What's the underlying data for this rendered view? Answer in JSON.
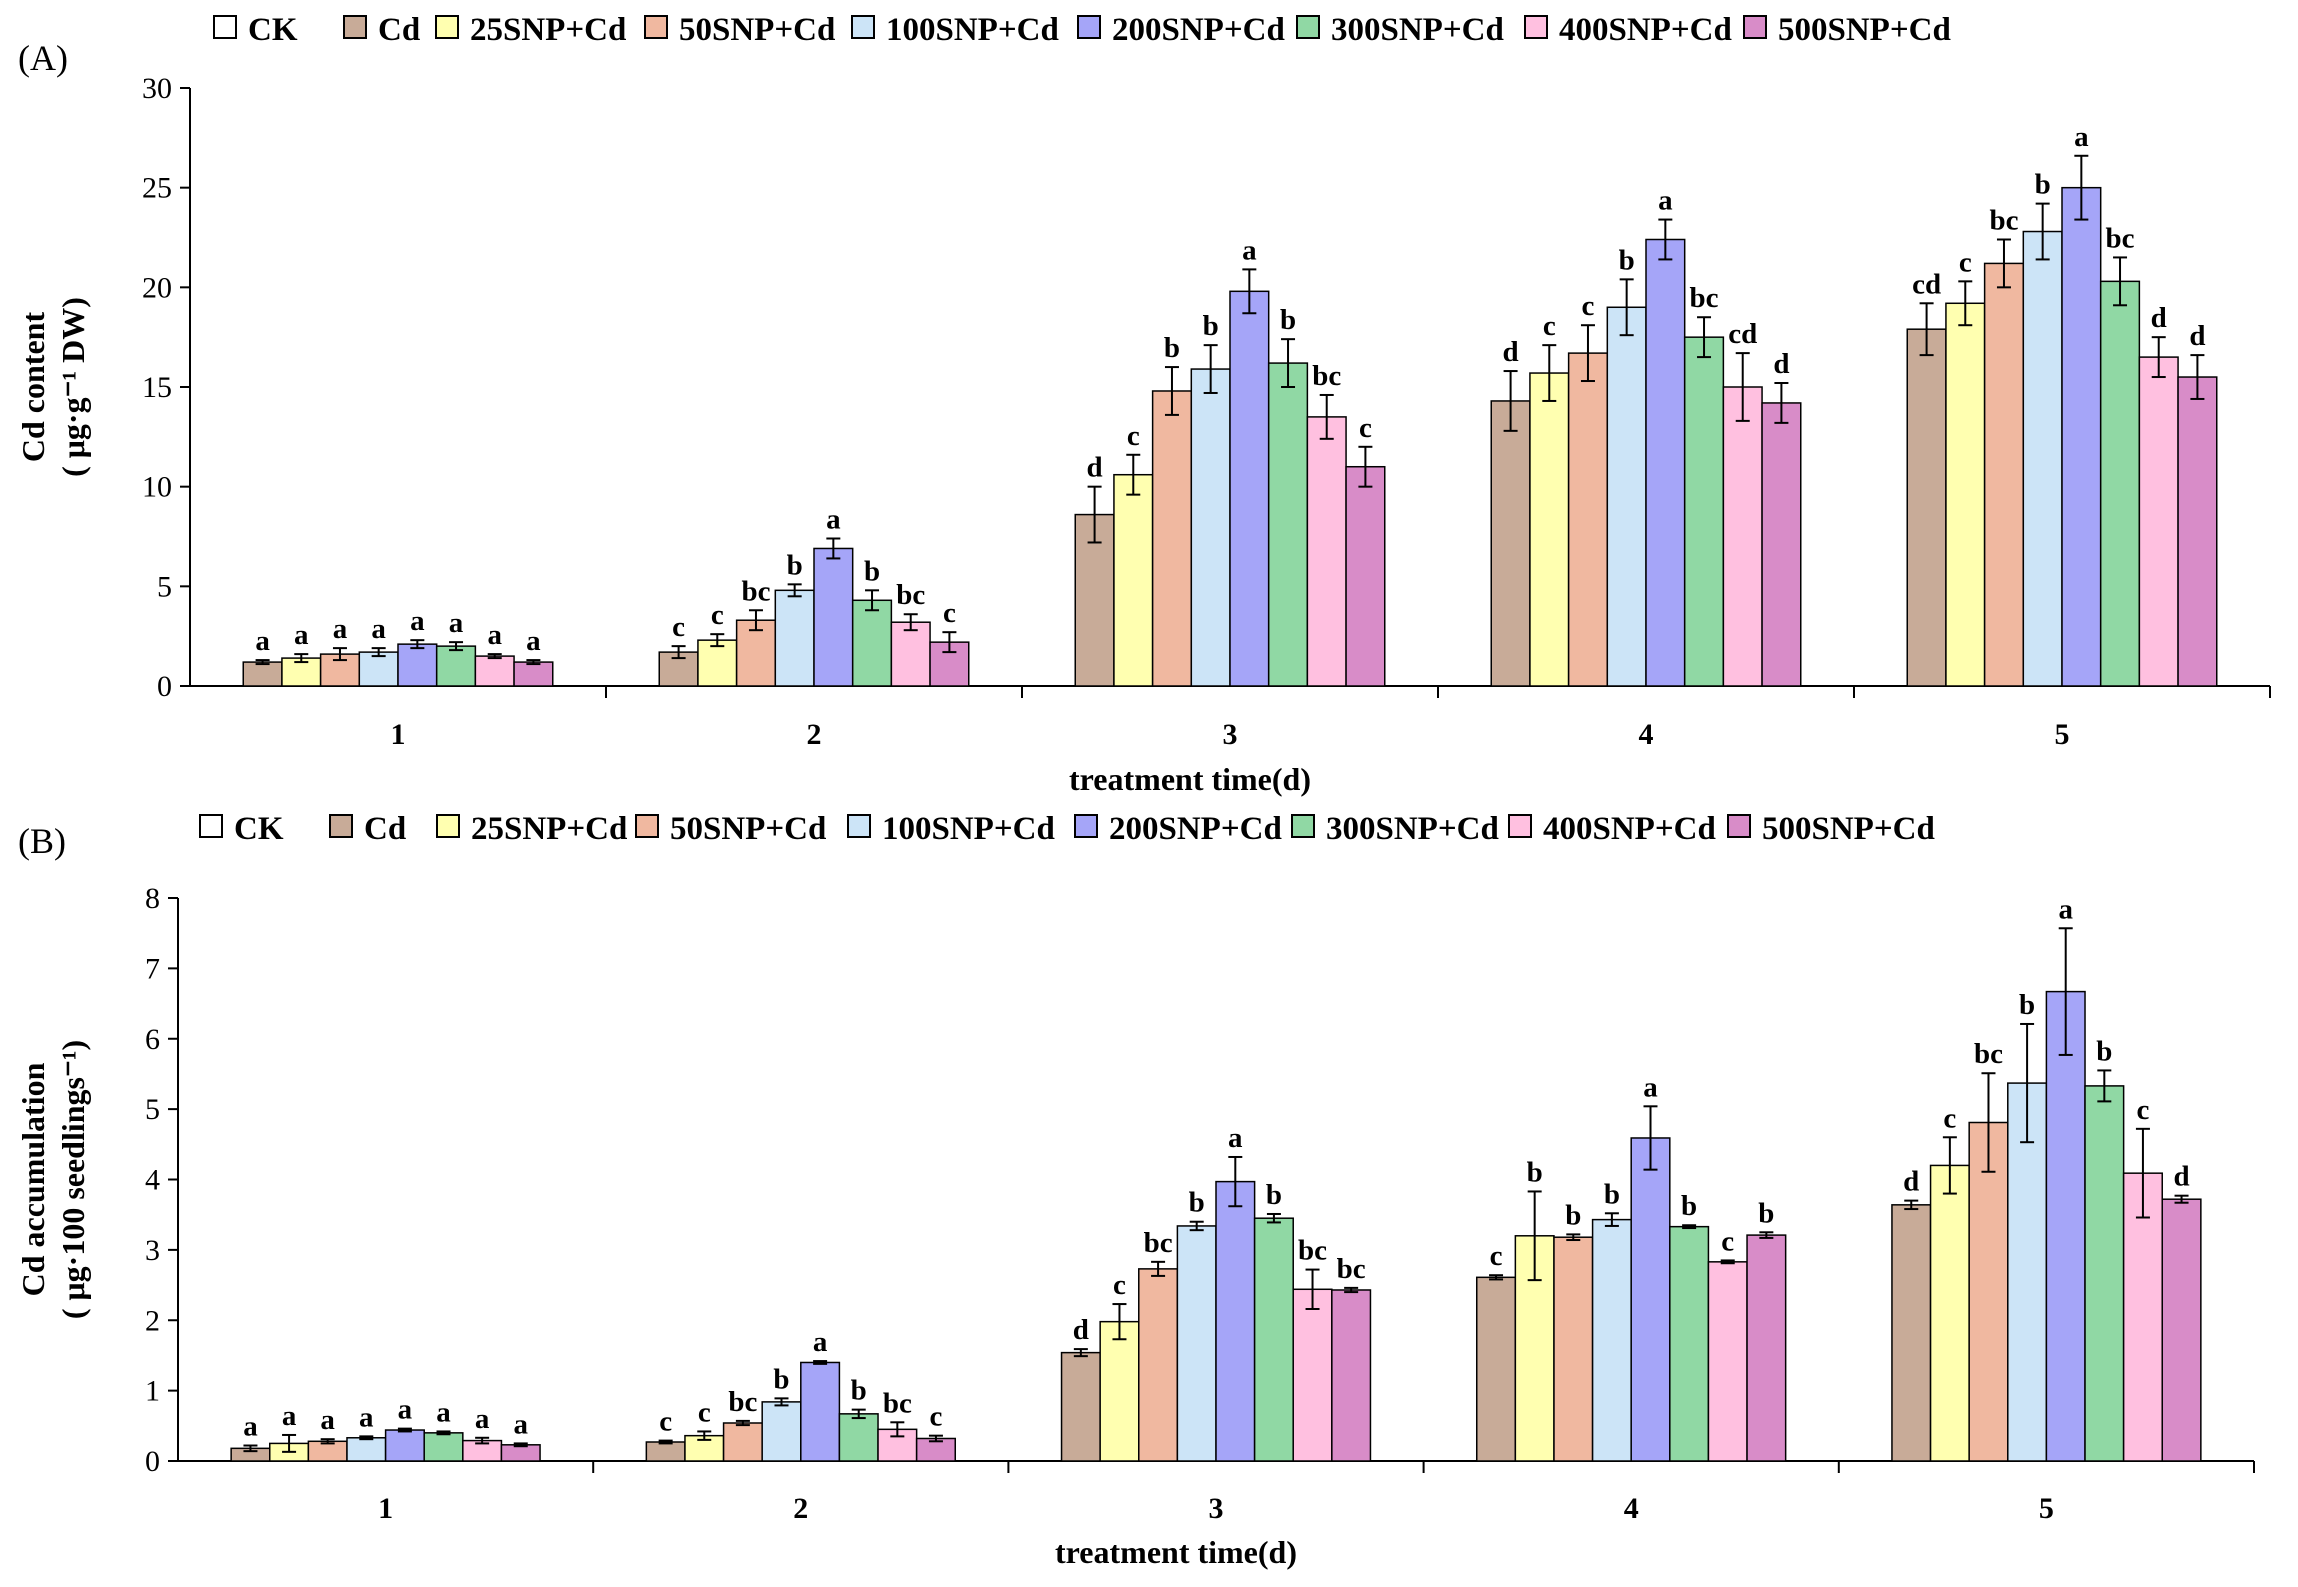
{
  "figure": {
    "legend_series": [
      "CK",
      "Cd",
      "25SNP+Cd",
      "50SNP+Cd",
      "100SNP+Cd",
      "200SNP+Cd",
      "300SNP+Cd",
      "400SNP+Cd",
      "500SNP+Cd"
    ],
    "legend_colors": [
      "#ffffff",
      "#c8ab98",
      "#ffffb0",
      "#f0b8a0",
      "#cce4f7",
      "#a5a5f8",
      "#90d8a4",
      "#ffc0e0",
      "#d88cc8"
    ]
  },
  "chart_data": [
    {
      "type": "bar",
      "panel_label": "(A)",
      "xlabel": "treatment time(d)",
      "ylabel": [
        "Cd content",
        "( μg·g⁻¹ DW)"
      ],
      "ylim": [
        0,
        30
      ],
      "yticks": [
        "0",
        "5",
        "10",
        "15",
        "20",
        "25",
        "30"
      ],
      "categories": [
        "1",
        "2",
        "3",
        "4",
        "5"
      ],
      "legend_position": "top",
      "series": [
        {
          "name": "Cd",
          "color": "#c8ab98",
          "values": [
            1.2,
            1.7,
            8.6,
            14.3,
            17.9
          ],
          "errors": [
            0.1,
            0.3,
            1.4,
            1.5,
            1.3
          ],
          "labels": [
            "a",
            "c",
            "d",
            "d",
            "cd"
          ]
        },
        {
          "name": "25SNP+Cd",
          "color": "#ffffb0",
          "values": [
            1.4,
            2.3,
            10.6,
            15.7,
            19.2
          ],
          "errors": [
            0.2,
            0.3,
            1.0,
            1.4,
            1.1
          ],
          "labels": [
            "a",
            "c",
            "c",
            "c",
            "c"
          ]
        },
        {
          "name": "50SNP+Cd",
          "color": "#f0b8a0",
          "values": [
            1.6,
            3.3,
            14.8,
            16.7,
            21.2
          ],
          "errors": [
            0.3,
            0.5,
            1.2,
            1.4,
            1.2
          ],
          "labels": [
            "a",
            "bc",
            "b",
            "c",
            "bc"
          ]
        },
        {
          "name": "100SNP+Cd",
          "color": "#cce4f7",
          "values": [
            1.7,
            4.8,
            15.9,
            19.0,
            22.8
          ],
          "errors": [
            0.2,
            0.3,
            1.2,
            1.4,
            1.4
          ],
          "labels": [
            "a",
            "b",
            "b",
            "b",
            "b"
          ]
        },
        {
          "name": "200SNP+Cd",
          "color": "#a5a5f8",
          "values": [
            2.1,
            6.9,
            19.8,
            22.4,
            25.0
          ],
          "errors": [
            0.2,
            0.5,
            1.1,
            1.0,
            1.6
          ],
          "labels": [
            "a",
            "a",
            "a",
            "a",
            "a"
          ]
        },
        {
          "name": "300SNP+Cd",
          "color": "#90d8a4",
          "values": [
            2.0,
            4.3,
            16.2,
            17.5,
            20.3
          ],
          "errors": [
            0.2,
            0.5,
            1.2,
            1.0,
            1.2
          ],
          "labels": [
            "a",
            "b",
            "b",
            "bc",
            "bc"
          ]
        },
        {
          "name": "400SNP+Cd",
          "color": "#ffc0e0",
          "values": [
            1.5,
            3.2,
            13.5,
            15.0,
            16.5
          ],
          "errors": [
            0.1,
            0.4,
            1.1,
            1.7,
            1.0
          ],
          "labels": [
            "a",
            "bc",
            "bc",
            "cd",
            "d"
          ]
        },
        {
          "name": "500SNP+Cd",
          "color": "#d88cc8",
          "values": [
            1.2,
            2.2,
            11.0,
            14.2,
            15.5
          ],
          "errors": [
            0.1,
            0.5,
            1.0,
            1.0,
            1.1
          ],
          "labels": [
            "a",
            "c",
            "c",
            "d",
            "d"
          ]
        }
      ]
    },
    {
      "type": "bar",
      "panel_label": "(B)",
      "xlabel": "treatment time(d)",
      "ylabel": [
        "Cd accumulation",
        "( μg·100 seedlings⁻¹)"
      ],
      "ylim": [
        0,
        8
      ],
      "yticks": [
        "0",
        "1",
        "2",
        "3",
        "4",
        "5",
        "6",
        "7",
        "8"
      ],
      "categories": [
        "1",
        "2",
        "3",
        "4",
        "5"
      ],
      "legend_position": "top",
      "series": [
        {
          "name": "Cd",
          "color": "#c8ab98",
          "values": [
            0.18,
            0.27,
            1.54,
            2.61,
            3.64
          ],
          "errors": [
            0.04,
            0.02,
            0.05,
            0.03,
            0.06
          ],
          "labels": [
            "a",
            "c",
            "d",
            "c",
            "d"
          ]
        },
        {
          "name": "25SNP+Cd",
          "color": "#ffffb0",
          "values": [
            0.25,
            0.36,
            1.98,
            3.2,
            4.2
          ],
          "errors": [
            0.12,
            0.06,
            0.25,
            0.63,
            0.4
          ],
          "labels": [
            "a",
            "c",
            "c",
            "b",
            "c"
          ]
        },
        {
          "name": "50SNP+Cd",
          "color": "#f0b8a0",
          "values": [
            0.28,
            0.54,
            2.73,
            3.18,
            4.81
          ],
          "errors": [
            0.03,
            0.03,
            0.1,
            0.04,
            0.7
          ],
          "labels": [
            "a",
            "bc",
            "bc",
            "b",
            "bc"
          ]
        },
        {
          "name": "100SNP+Cd",
          "color": "#cce4f7",
          "values": [
            0.33,
            0.84,
            3.34,
            3.43,
            5.37
          ],
          "errors": [
            0.02,
            0.05,
            0.06,
            0.09,
            0.84
          ],
          "labels": [
            "a",
            "b",
            "b",
            "b",
            "b"
          ]
        },
        {
          "name": "200SNP+Cd",
          "color": "#a5a5f8",
          "values": [
            0.44,
            1.4,
            3.97,
            4.59,
            6.67
          ],
          "errors": [
            0.02,
            0.02,
            0.35,
            0.45,
            0.9
          ],
          "labels": [
            "a",
            "a",
            "a",
            "a",
            "a"
          ]
        },
        {
          "name": "300SNP+Cd",
          "color": "#90d8a4",
          "values": [
            0.4,
            0.67,
            3.45,
            3.33,
            5.33
          ],
          "errors": [
            0.02,
            0.06,
            0.06,
            0.02,
            0.22
          ],
          "labels": [
            "a",
            "b",
            "b",
            "b",
            "b"
          ]
        },
        {
          "name": "400SNP+Cd",
          "color": "#ffc0e0",
          "values": [
            0.29,
            0.45,
            2.44,
            2.83,
            4.09
          ],
          "errors": [
            0.04,
            0.1,
            0.28,
            0.02,
            0.63
          ],
          "labels": [
            "a",
            "bc",
            "bc",
            "c",
            "c"
          ]
        },
        {
          "name": "500SNP+Cd",
          "color": "#d88cc8",
          "values": [
            0.23,
            0.32,
            2.43,
            3.21,
            3.72
          ],
          "errors": [
            0.02,
            0.04,
            0.03,
            0.04,
            0.05
          ],
          "labels": [
            "a",
            "c",
            "bc",
            "b",
            "d"
          ]
        }
      ]
    }
  ]
}
